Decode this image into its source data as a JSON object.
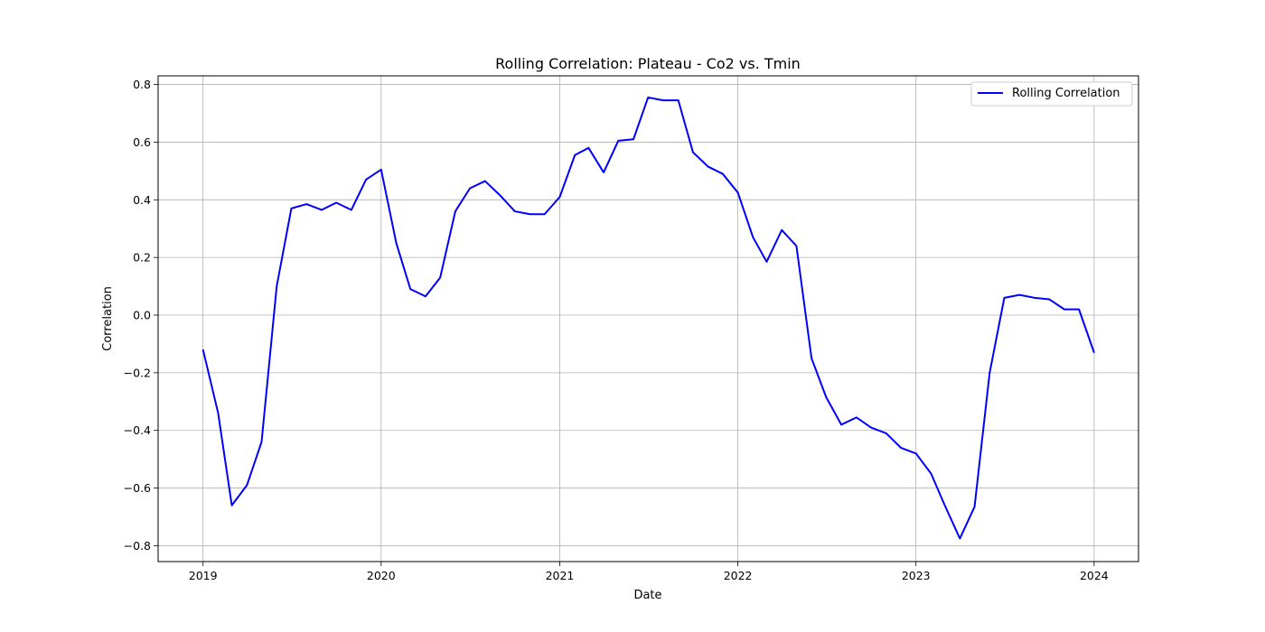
{
  "chart_data": {
    "type": "line",
    "title": "Rolling Correlation: Plateau - Co2 vs. Tmin",
    "xlabel": "Date",
    "ylabel": "Correlation",
    "x_ticks": [
      "2019",
      "2020",
      "2021",
      "2022",
      "2023",
      "2024"
    ],
    "y_ticks": [
      -0.8,
      -0.6,
      -0.4,
      -0.2,
      0.0,
      0.2,
      0.4,
      0.6,
      0.8
    ],
    "y_tick_labels": [
      "−0.8",
      "−0.6",
      "−0.4",
      "−0.2",
      "0.0",
      "0.2",
      "0.4",
      "0.6",
      "0.8"
    ],
    "xlim": [
      "2018-10-01",
      "2024-04-01"
    ],
    "ylim": [
      -0.855,
      0.83
    ],
    "grid": true,
    "legend_position": "top-right",
    "colors": {
      "line": "#0000ff",
      "grid": "#b0b0b0",
      "frame": "#000000"
    },
    "series": [
      {
        "name": "Rolling Correlation",
        "x": [
          "2019-01-01",
          "2019-02-01",
          "2019-03-01",
          "2019-04-01",
          "2019-05-01",
          "2019-06-01",
          "2019-07-01",
          "2019-08-01",
          "2019-09-01",
          "2019-10-01",
          "2019-11-01",
          "2019-12-01",
          "2020-01-01",
          "2020-02-01",
          "2020-03-01",
          "2020-04-01",
          "2020-05-01",
          "2020-06-01",
          "2020-07-01",
          "2020-08-01",
          "2020-09-01",
          "2020-10-01",
          "2020-11-01",
          "2020-12-01",
          "2021-01-01",
          "2021-02-01",
          "2021-03-01",
          "2021-04-01",
          "2021-05-01",
          "2021-06-01",
          "2021-07-01",
          "2021-08-01",
          "2021-09-01",
          "2021-10-01",
          "2021-11-01",
          "2021-12-01",
          "2022-01-01",
          "2022-02-01",
          "2022-03-01",
          "2022-04-01",
          "2022-05-01",
          "2022-06-01",
          "2022-07-01",
          "2022-08-01",
          "2022-09-01",
          "2022-10-01",
          "2022-11-01",
          "2022-12-01",
          "2023-01-01",
          "2023-02-01",
          "2023-03-01",
          "2023-04-01",
          "2023-05-01",
          "2023-06-01",
          "2023-07-01",
          "2023-08-01",
          "2023-09-01",
          "2023-10-01",
          "2023-11-01",
          "2023-12-01",
          "2024-01-01"
        ],
        "values": [
          -0.12,
          -0.34,
          -0.66,
          -0.59,
          -0.44,
          0.1,
          0.37,
          0.385,
          0.365,
          0.39,
          0.365,
          0.47,
          0.505,
          0.25,
          0.09,
          0.065,
          0.13,
          0.36,
          0.44,
          0.465,
          0.415,
          0.36,
          0.35,
          0.35,
          0.41,
          0.555,
          0.58,
          0.495,
          0.605,
          0.61,
          0.755,
          0.745,
          0.745,
          0.565,
          0.515,
          0.49,
          0.425,
          0.27,
          0.185,
          0.295,
          0.24,
          -0.15,
          -0.285,
          -0.38,
          -0.355,
          -0.39,
          -0.41,
          -0.46,
          -0.48,
          -0.55,
          -0.66,
          -0.775,
          -0.665,
          -0.2,
          0.06,
          0.07,
          0.06,
          0.055,
          0.02,
          0.02,
          -0.13
        ]
      }
    ]
  }
}
